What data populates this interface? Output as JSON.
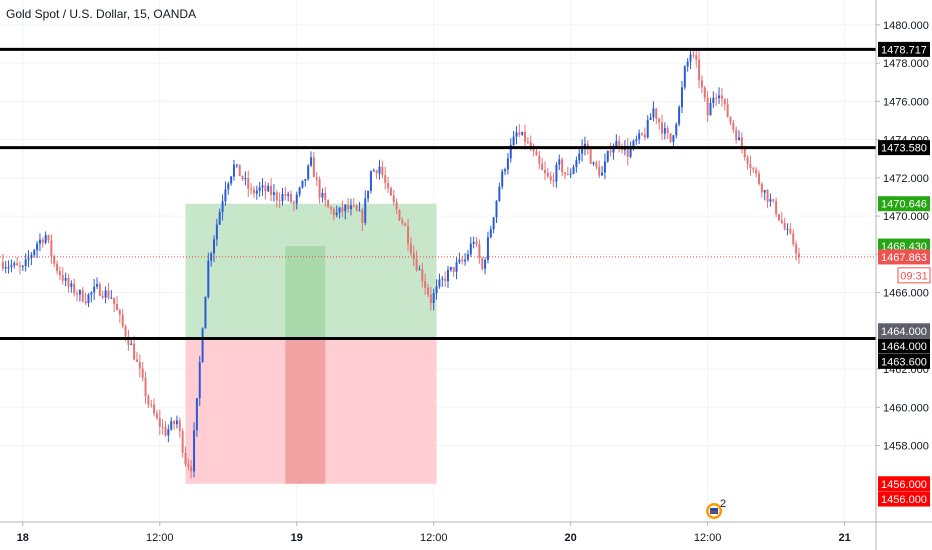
{
  "header": {
    "title": "Gold Spot / U.S. Dollar, 15, OANDA"
  },
  "colors": {
    "bull": "#2a5bd7",
    "bear": "#e57373",
    "profit_zone": "#c8e6c9",
    "profit_zone_dark": "#a5d6a7",
    "loss_zone": "#ffcdd2",
    "loss_zone_dark": "#ef9a9a",
    "level_line": "#000000",
    "price_line": "#f44336",
    "tag_green": "#26a612",
    "tag_red": "#ef5350",
    "tag_solid_red": "#ff0000",
    "tag_grey": "#5d606b",
    "tag_black": "#000000"
  },
  "price_tags": [
    {
      "label": "1478.717",
      "value": 1478.717,
      "style": "black"
    },
    {
      "label": "1473.580",
      "value": 1473.58,
      "style": "black"
    },
    {
      "label": "1470.646",
      "value": 1470.646,
      "style": "green"
    },
    {
      "label": "1468.430",
      "value": 1468.43,
      "style": "green"
    },
    {
      "label": "1467.863",
      "value": 1467.863,
      "style": "red_light"
    },
    {
      "label": "09:31",
      "value": 1466.9,
      "style": "countdown"
    },
    {
      "label": "1464.000",
      "value": 1464.0,
      "style": "grey"
    },
    {
      "label": "1464.000",
      "value": 1463.2,
      "style": "black"
    },
    {
      "label": "1463.600",
      "value": 1462.4,
      "style": "black"
    },
    {
      "label": "1456.000",
      "value": 1456.0,
      "style": "red"
    },
    {
      "label": "1456.000",
      "value": 1455.2,
      "style": "red"
    }
  ],
  "icons": {
    "events": "event-flag-icon",
    "events_count": "2"
  },
  "chart_data": {
    "type": "candlestick",
    "title": "Gold Spot / U.S. Dollar, 15, OANDA",
    "ylim": [
      1454,
      1481.3
    ],
    "y_ticks": [
      1458,
      1460,
      1462,
      1466,
      1468,
      1470,
      1472,
      1474,
      1476,
      1478,
      1480
    ],
    "y_tick_labels": [
      "1458.000",
      "1460.000",
      "1462.000",
      "1466.000",
      "1468.000",
      "1470.000",
      "1472.000",
      "1474.000",
      "1476.000",
      "1478.000",
      "1480.000"
    ],
    "x_ticks": [
      {
        "index": 0,
        "label": "18"
      },
      {
        "index": 48,
        "label": "12:00"
      },
      {
        "index": 96,
        "label": "19"
      },
      {
        "index": 144,
        "label": "12:00"
      },
      {
        "index": 192,
        "label": "20"
      },
      {
        "index": 240,
        "label": "12:00"
      },
      {
        "index": 288,
        "label": "21"
      }
    ],
    "horizontal_levels": [
      1478.717,
      1473.58,
      1463.6
    ],
    "current_price": 1467.863,
    "position_boxes": [
      {
        "start": 57,
        "end": 145,
        "entry": 1463.6,
        "target": 1470.646,
        "stop": 1456.0
      },
      {
        "start": 92,
        "end": 106,
        "entry": 1463.6,
        "target": 1468.43,
        "stop": 1456.0
      }
    ],
    "anchors": [
      [
        -8,
        1467.6
      ],
      [
        0,
        1467.2
      ],
      [
        5,
        1468.6
      ],
      [
        8,
        1469.0
      ],
      [
        11,
        1467.5
      ],
      [
        16,
        1466.3
      ],
      [
        22,
        1465.7
      ],
      [
        26,
        1466.2
      ],
      [
        31,
        1465.8
      ],
      [
        35,
        1464.2
      ],
      [
        38,
        1463.2
      ],
      [
        41,
        1461.8
      ],
      [
        44,
        1460.2
      ],
      [
        47,
        1459.3
      ],
      [
        50,
        1458.7
      ],
      [
        54,
        1459.3
      ],
      [
        57,
        1457.2
      ],
      [
        59,
        1456.9
      ],
      [
        61,
        1460.2
      ],
      [
        63,
        1464.4
      ],
      [
        65,
        1467.6
      ],
      [
        68,
        1469.6
      ],
      [
        71,
        1471.6
      ],
      [
        74,
        1472.6
      ],
      [
        77,
        1472.0
      ],
      [
        80,
        1471.2
      ],
      [
        83,
        1471.4
      ],
      [
        86,
        1471.3
      ],
      [
        89,
        1471.0
      ],
      [
        92,
        1471.1
      ],
      [
        95,
        1470.6
      ],
      [
        98,
        1471.6
      ],
      [
        101,
        1472.8
      ],
      [
        104,
        1471.2
      ],
      [
        107,
        1470.4
      ],
      [
        110,
        1470.1
      ],
      [
        113,
        1470.4
      ],
      [
        116,
        1470.3
      ],
      [
        119,
        1469.9
      ],
      [
        122,
        1472.3
      ],
      [
        125,
        1472.6
      ],
      [
        128,
        1471.2
      ],
      [
        131,
        1470.3
      ],
      [
        134,
        1469.4
      ],
      [
        137,
        1467.8
      ],
      [
        140,
        1466.8
      ],
      [
        143,
        1465.6
      ],
      [
        146,
        1466.4
      ],
      [
        149,
        1467.0
      ],
      [
        152,
        1467.4
      ],
      [
        155,
        1467.7
      ],
      [
        158,
        1468.8
      ],
      [
        161,
        1467.2
      ],
      [
        164,
        1469.4
      ],
      [
        167,
        1471.6
      ],
      [
        170,
        1473.2
      ],
      [
        173,
        1474.3
      ],
      [
        176,
        1474.0
      ],
      [
        179,
        1473.2
      ],
      [
        182,
        1472.3
      ],
      [
        185,
        1471.8
      ],
      [
        188,
        1472.7
      ],
      [
        191,
        1472.0
      ],
      [
        194,
        1473.0
      ],
      [
        197,
        1473.8
      ],
      [
        200,
        1472.6
      ],
      [
        203,
        1472.2
      ],
      [
        206,
        1473.6
      ],
      [
        209,
        1473.9
      ],
      [
        212,
        1473.3
      ],
      [
        215,
        1473.9
      ],
      [
        218,
        1474.3
      ],
      [
        221,
        1475.6
      ],
      [
        224,
        1474.6
      ],
      [
        227,
        1473.9
      ],
      [
        230,
        1475.6
      ],
      [
        232,
        1477.6
      ],
      [
        234,
        1478.5
      ],
      [
        236,
        1477.9
      ],
      [
        238,
        1476.6
      ],
      [
        240,
        1475.3
      ],
      [
        242,
        1476.3
      ],
      [
        244,
        1476.6
      ],
      [
        246,
        1475.6
      ],
      [
        249,
        1474.6
      ],
      [
        252,
        1473.6
      ],
      [
        255,
        1472.7
      ],
      [
        258,
        1471.8
      ],
      [
        261,
        1471.0
      ],
      [
        264,
        1470.3
      ],
      [
        267,
        1469.3
      ],
      [
        270,
        1468.6
      ],
      [
        272,
        1467.9
      ]
    ],
    "x_range": [
      -8,
      299
    ]
  }
}
